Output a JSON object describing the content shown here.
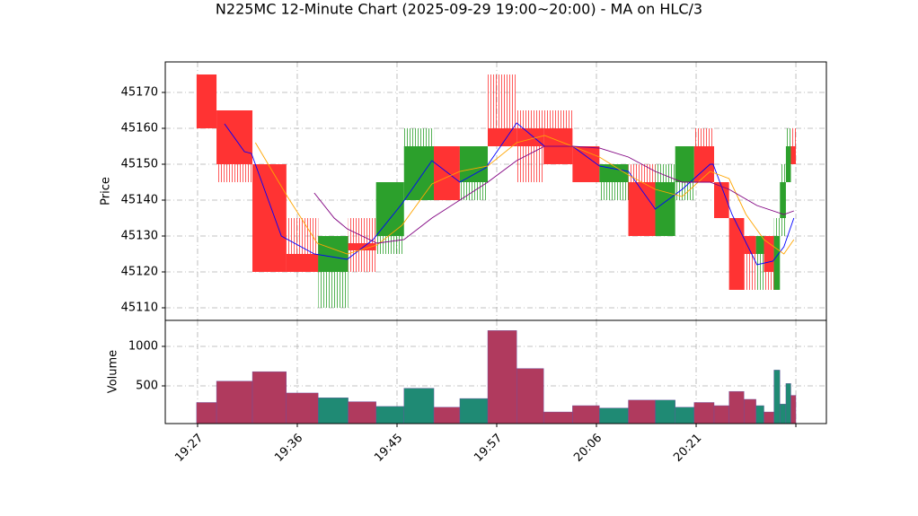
{
  "chart_data": [
    {
      "type": "candlestick",
      "title": "N225MC 12-Minute Chart (2025-09-29 19:00~20:00) - MA on HLC/3",
      "ylabel": "Price",
      "ylim": [
        45106.5,
        45178.5
      ],
      "yticks": [
        45110,
        45120,
        45130,
        45140,
        45150,
        45160,
        45170
      ],
      "grid": true,
      "up_color": "#2ca02c",
      "down_color": "#ff3333",
      "x_start": [
        -0.1,
        1.9,
        5.5,
        8.9,
        12.1,
        15.1,
        17.9,
        20.7,
        23.7,
        26.3,
        29.1,
        32,
        34.7,
        37.6,
        40.3,
        43.2,
        45.9,
        47.9,
        49.8,
        51.8,
        53.3,
        54.8,
        56,
        56.8,
        57.8,
        58.4,
        59,
        59.5
      ],
      "x_end": [
        1.9,
        5.5,
        8.9,
        12.1,
        15.1,
        17.9,
        20.7,
        23.7,
        26.3,
        29.1,
        32,
        34.7,
        37.6,
        40.3,
        43.2,
        45.9,
        47.9,
        49.8,
        51.8,
        53.3,
        54.8,
        56,
        56.8,
        57.8,
        58.4,
        59,
        59.5,
        60
      ],
      "open": [
        45175,
        45165,
        45150,
        45125,
        45120,
        45128,
        45130,
        45140,
        45155,
        45145,
        45160,
        45160,
        45160,
        45155,
        45145,
        45145,
        45130,
        45145,
        45155,
        45145,
        45135,
        45130,
        45125,
        45130,
        45115,
        45135,
        45145,
        45155
      ],
      "high": [
        45175,
        45165,
        45150,
        45135,
        45130,
        45135,
        45145,
        45160,
        45155,
        45155,
        45175,
        45165,
        45165,
        45155,
        45150,
        45150,
        45150,
        45155,
        45160,
        45145,
        45135,
        45130,
        45130,
        45130,
        45135,
        45150,
        45160,
        45160
      ],
      "low": [
        45160,
        45145,
        45120,
        45120,
        45110,
        45120,
        45125,
        45140,
        45140,
        45140,
        45155,
        45145,
        45150,
        45145,
        45140,
        45130,
        45130,
        45140,
        45145,
        45135,
        45115,
        45115,
        45115,
        45115,
        45115,
        45130,
        45145,
        45150
      ],
      "close": [
        45160,
        45150,
        45120,
        45120,
        45130,
        45126,
        45145,
        45155,
        45140,
        45155,
        45155,
        45155,
        45150,
        45145,
        45150,
        45130,
        45145,
        45155,
        45145,
        45135,
        45115,
        45125,
        45130,
        45120,
        45130,
        45145,
        45155,
        45150
      ],
      "lines": [
        {
          "color": "#0000ff",
          "x": [
            2.7,
            4.7,
            5.4,
            8.4,
            11.7,
            15,
            17.6,
            20.5,
            23.5,
            26.3,
            28.9,
            32,
            34.8,
            37.6,
            40.3,
            43.2,
            45.9,
            48.6,
            51.4,
            51.7,
            53.6,
            56.1,
            57.7,
            58.8,
            59.8
          ],
          "values": [
            45161.25,
            45153.5,
            45153,
            45130,
            45125,
            45123.5,
            45129,
            45139,
            45151,
            45145,
            45149,
            45161.5,
            45155,
            45155,
            45149.5,
            45148,
            45137.5,
            45143,
            45150,
            45150,
            45136,
            45122,
            45123,
            45127,
            45135
          ]
        },
        {
          "color": "#ffa500",
          "x": [
            5.8,
            9,
            12,
            15,
            18,
            20.5,
            23.5,
            26.3,
            29.1,
            32,
            34.8,
            37.6,
            40.3,
            43.2,
            45.9,
            48.6,
            51.4,
            53.3,
            55,
            56.8,
            58.8,
            59.8
          ],
          "values": [
            45156,
            45141,
            45128,
            45125,
            45127.5,
            45133,
            45144.5,
            45148,
            45149.5,
            45156,
            45158,
            45155,
            45152,
            45147,
            45143,
            45141,
            45148,
            45146,
            45136,
            45129,
            45125,
            45129
          ]
        },
        {
          "color": "#800080",
          "x": [
            11.7,
            13.7,
            15,
            18,
            20.7,
            23.5,
            26.3,
            29.1,
            32,
            34.8,
            37.6,
            40.3,
            43.2,
            45.9,
            48.6,
            51.4,
            53.3,
            56.1,
            58.8,
            59.8
          ],
          "values": [
            45142,
            45135,
            45132,
            45128,
            45129,
            45135,
            45140,
            45145,
            45151,
            45155,
            45155,
            45154.5,
            45152,
            45148,
            45145,
            45145,
            45143,
            45138.5,
            45136,
            45137
          ]
        }
      ]
    },
    {
      "type": "bar",
      "ylabel": "Volume",
      "ylim": [
        23,
        1329
      ],
      "yticks": [
        500,
        1000
      ],
      "grid": true,
      "xlim": [
        -3.24,
        63.06
      ],
      "xticks": [
        {
          "value": 0,
          "label": "19:27"
        },
        {
          "value": 10,
          "label": "19:36"
        },
        {
          "value": 20,
          "label": "19:45"
        },
        {
          "value": 30,
          "label": "19:57"
        },
        {
          "value": 40,
          "label": "20:06"
        },
        {
          "value": 50,
          "label": "20:21"
        },
        {
          "value": 60,
          "label": null
        }
      ],
      "x_start": [
        -0.1,
        1.9,
        5.5,
        8.9,
        12.1,
        15.1,
        17.9,
        20.7,
        23.7,
        26.3,
        29.1,
        32,
        34.7,
        37.6,
        40.3,
        43.2,
        45.9,
        47.9,
        49.8,
        51.8,
        53.3,
        54.8,
        56,
        56.8,
        57.8,
        58.4,
        59,
        59.5
      ],
      "x_end": [
        1.9,
        5.5,
        8.9,
        12.1,
        15.1,
        17.9,
        20.7,
        23.7,
        26.3,
        29.1,
        32,
        34.7,
        37.6,
        40.3,
        43.2,
        45.9,
        47.9,
        49.8,
        51.8,
        53.3,
        54.8,
        56,
        56.8,
        57.8,
        58.4,
        59,
        59.5,
        60
      ],
      "values": [
        290,
        560,
        680,
        410,
        350,
        300,
        240,
        470,
        230,
        340,
        1200,
        720,
        170,
        250,
        220,
        320,
        320,
        230,
        290,
        250,
        430,
        330,
        250,
        170,
        700,
        270,
        530,
        380
      ],
      "colors": [
        "#b03a5e",
        "#b03a5e",
        "#b03a5e",
        "#b03a5e",
        "#1f8a74",
        "#b03a5e",
        "#1f8a74",
        "#1f8a74",
        "#b03a5e",
        "#1f8a74",
        "#b03a5e",
        "#b03a5e",
        "#b03a5e",
        "#b03a5e",
        "#1f8a74",
        "#b03a5e",
        "#1f8a74",
        "#1f8a74",
        "#b03a5e",
        "#b03a5e",
        "#b03a5e",
        "#b03a5e",
        "#1f8a74",
        "#b03a5e",
        "#1f8a74",
        "#1f8a74",
        "#1f8a74",
        "#b03a5e"
      ]
    }
  ]
}
